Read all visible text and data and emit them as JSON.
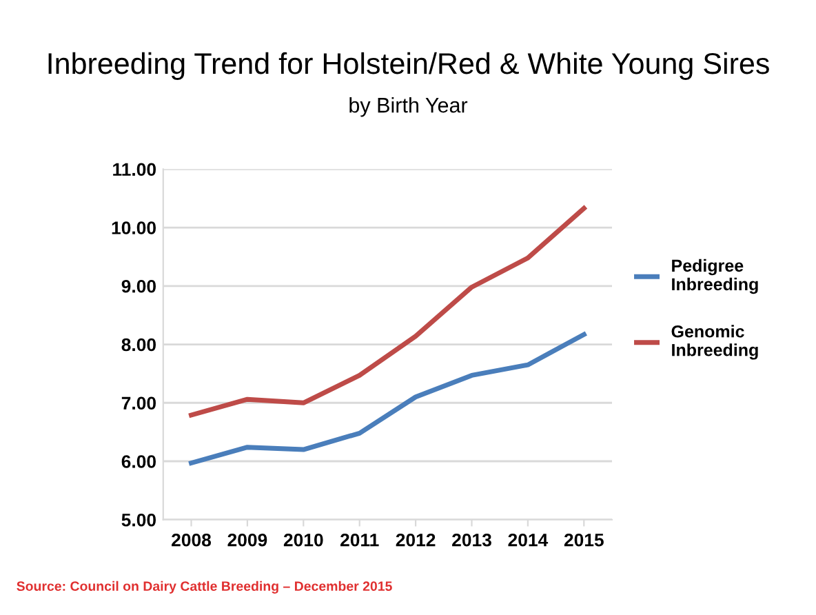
{
  "chart_data": {
    "type": "line",
    "title": "Inbreeding Trend for Holstein/Red & White Young Sires",
    "subtitle": "by Birth Year",
    "categories": [
      "2008",
      "2009",
      "2010",
      "2011",
      "2012",
      "2013",
      "2014",
      "2015"
    ],
    "series": [
      {
        "name": "Pedigree\nInbreeding",
        "color": "#4a7ebb",
        "values": [
          5.97,
          6.24,
          6.2,
          6.48,
          7.1,
          7.47,
          7.65,
          8.17
        ]
      },
      {
        "name": "Genomic\nInbreeding",
        "color": "#be4b48",
        "values": [
          6.79,
          7.06,
          7.0,
          7.47,
          8.14,
          8.98,
          9.48,
          10.33
        ]
      }
    ],
    "ylim": [
      5,
      11
    ],
    "yticks": [
      {
        "value": 5,
        "label": "5.00"
      },
      {
        "value": 6,
        "label": "6.00"
      },
      {
        "value": 7,
        "label": "7.00"
      },
      {
        "value": 8,
        "label": "8.00"
      },
      {
        "value": 9,
        "label": "9.00"
      },
      {
        "value": 10,
        "label": "10.00"
      },
      {
        "value": 11,
        "label": "11.00"
      }
    ],
    "grid": "y",
    "legend": "right",
    "marker": "none",
    "line_style": "solid",
    "annotations": [
      "Source: Council on Dairy Cattle Breeding – December 2015"
    ]
  }
}
